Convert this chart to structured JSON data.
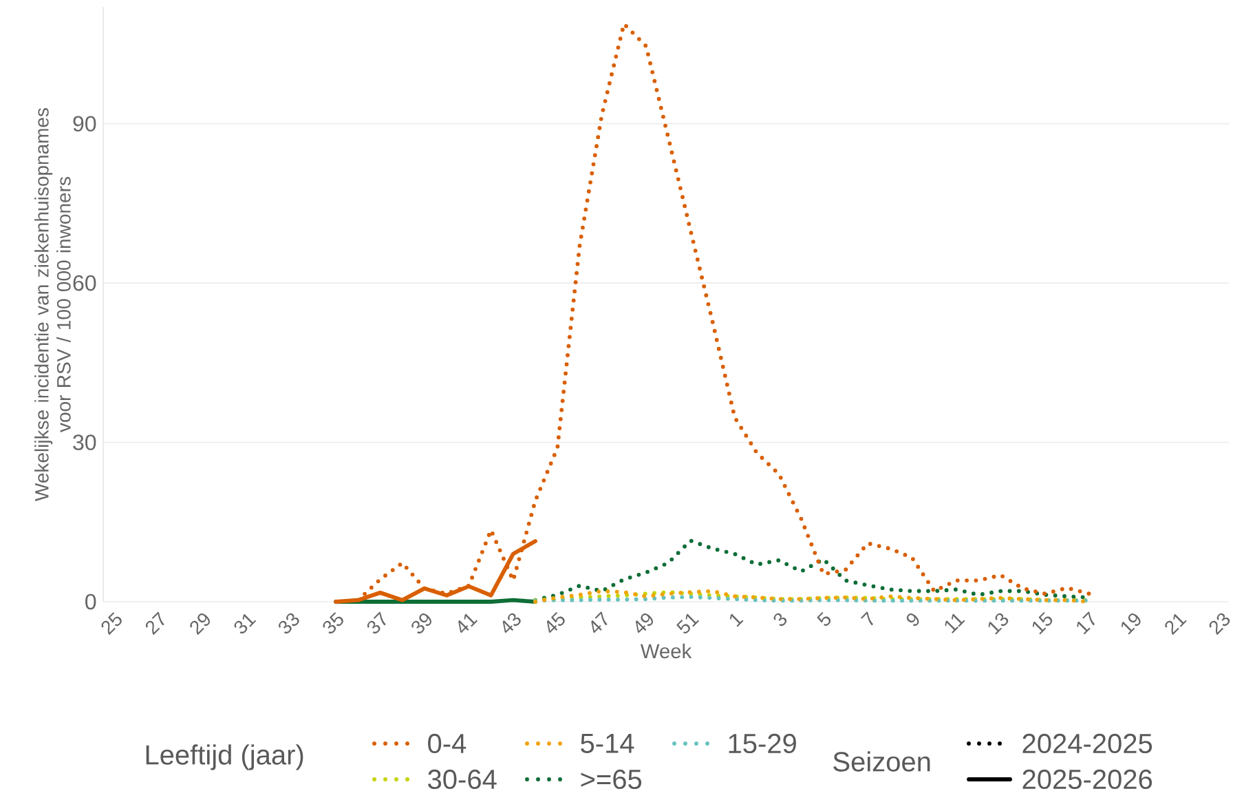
{
  "chart_data": {
    "type": "line",
    "xlabel": "Week",
    "ylabel": "Wekelijkse incidentie van ziekenhuisopnames voor RSV / 100 000 inwoners",
    "legend_title": "Leeftijd (jaar)",
    "legend": "bottom",
    "grid": "y",
    "ylim": [
      0,
      112
    ],
    "yticks": [
      0,
      30,
      60,
      90
    ],
    "categories": [
      "25",
      null,
      "27",
      null,
      "29",
      null,
      "31",
      null,
      "33",
      null,
      "35",
      null,
      "37",
      null,
      "39",
      null,
      "41",
      null,
      "43",
      null,
      "45",
      null,
      "47",
      null,
      "49",
      null,
      "51",
      null,
      "1",
      null,
      "3",
      null,
      "5",
      null,
      "7",
      null,
      "9",
      null,
      "11",
      null,
      "13",
      null,
      "15",
      null,
      "17",
      null,
      "19",
      null,
      "21",
      null,
      "23"
    ],
    "annotations": [
      "Seizoen",
      "2024-2025",
      "2025-2026"
    ],
    "series": [
      {
        "name": "0-4",
        "color": "#d95f02",
        "line_style": "dotted",
        "values": [
          null,
          null,
          null,
          null,
          null,
          null,
          null,
          null,
          null,
          null,
          null,
          0.3,
          4.2,
          7.3,
          2.5,
          1.5,
          3,
          13.5,
          4,
          19,
          29,
          67,
          91.6,
          108.8,
          104.6,
          87.4,
          70,
          52.7,
          34.7,
          28,
          24,
          15.6,
          5.2,
          6,
          11,
          10,
          8.3,
          2,
          4,
          4,
          5,
          2.5,
          1.5,
          2.6,
          1.5,
          null,
          null,
          null,
          null,
          null,
          null
        ]
      },
      {
        "name": "5-14",
        "color": "#f0a30a",
        "line_style": "dotted",
        "values": [
          null,
          null,
          null,
          null,
          null,
          null,
          null,
          null,
          null,
          null,
          null,
          null,
          null,
          null,
          null,
          null,
          null,
          null,
          null,
          0,
          0.8,
          1.3,
          2,
          1.8,
          1,
          1.5,
          1.8,
          2,
          1,
          0.8,
          0.5,
          0.5,
          0.7,
          0.8,
          0.5,
          1,
          0.7,
          0.5,
          0.3,
          0.5,
          0.7,
          0.5,
          0.3,
          0.3,
          0,
          null,
          null,
          null,
          null,
          null,
          null
        ]
      },
      {
        "name": "15-29",
        "color": "#66c2bf",
        "line_style": "dotted",
        "values": [
          null,
          null,
          null,
          null,
          null,
          null,
          null,
          null,
          null,
          null,
          null,
          null,
          null,
          null,
          null,
          null,
          null,
          null,
          null,
          0.2,
          0.3,
          0.3,
          0.4,
          0.4,
          0.5,
          0.8,
          0.9,
          0.7,
          0.5,
          0.3,
          0.2,
          0.2,
          0.3,
          0.3,
          0.2,
          0.2,
          0.2,
          0.2,
          0.2,
          0.2,
          0.2,
          0.2,
          0.2,
          0.2,
          0.2,
          null,
          null,
          null,
          null,
          null,
          null
        ]
      },
      {
        "name": "30-64",
        "color": "#c5d300",
        "line_style": "dotted",
        "values": [
          null,
          null,
          null,
          null,
          null,
          null,
          null,
          null,
          null,
          null,
          null,
          null,
          null,
          null,
          null,
          null,
          null,
          null,
          null,
          0.3,
          0.5,
          0.8,
          1,
          1.2,
          1.5,
          1.8,
          1.5,
          1.2,
          1,
          0.8,
          0.5,
          0.5,
          0.7,
          0.8,
          0.7,
          0.5,
          0.5,
          0.5,
          0.5,
          0.5,
          0.5,
          0.5,
          0.3,
          0.3,
          0.3,
          null,
          null,
          null,
          null,
          null,
          null
        ]
      },
      {
        "name": ">=65",
        "color": "#0e6e37",
        "line_style": "dotted",
        "values": [
          null,
          null,
          null,
          null,
          null,
          null,
          null,
          null,
          null,
          null,
          null,
          null,
          null,
          null,
          null,
          null,
          null,
          null,
          null,
          0.3,
          1.3,
          3,
          2,
          4.2,
          5.5,
          7.3,
          11.5,
          10,
          9,
          7,
          7.8,
          5.7,
          8,
          4,
          3.1,
          2.3,
          2,
          2,
          2.3,
          1.3,
          2,
          2,
          1.3,
          1,
          0.8,
          null,
          null,
          null,
          null,
          null,
          null
        ]
      },
      {
        "color": "#d95f02",
        "line_style": "solid",
        "values": [
          null,
          null,
          null,
          null,
          null,
          null,
          null,
          null,
          null,
          null,
          0,
          0.3,
          1.7,
          0.3,
          2.5,
          1.2,
          2.9,
          1.2,
          9,
          11.4,
          null,
          null,
          null,
          null,
          null,
          null,
          null,
          null,
          null,
          null,
          null,
          null,
          null,
          null,
          null,
          null,
          null,
          null,
          null,
          null,
          null,
          null,
          null,
          null,
          null,
          null,
          null,
          null,
          null,
          null,
          null
        ]
      },
      {
        "color": "#0e6e37",
        "line_style": "solid",
        "values": [
          null,
          null,
          null,
          null,
          null,
          null,
          null,
          null,
          null,
          null,
          0,
          0,
          0,
          0,
          0,
          0,
          0,
          0,
          0.3,
          0,
          null,
          null,
          null,
          null,
          null,
          null,
          null,
          null,
          null,
          null,
          null,
          null,
          null,
          null,
          null,
          null,
          null,
          null,
          null,
          null,
          null,
          null,
          null,
          null,
          null,
          null,
          null,
          null,
          null,
          null,
          null
        ]
      }
    ]
  }
}
